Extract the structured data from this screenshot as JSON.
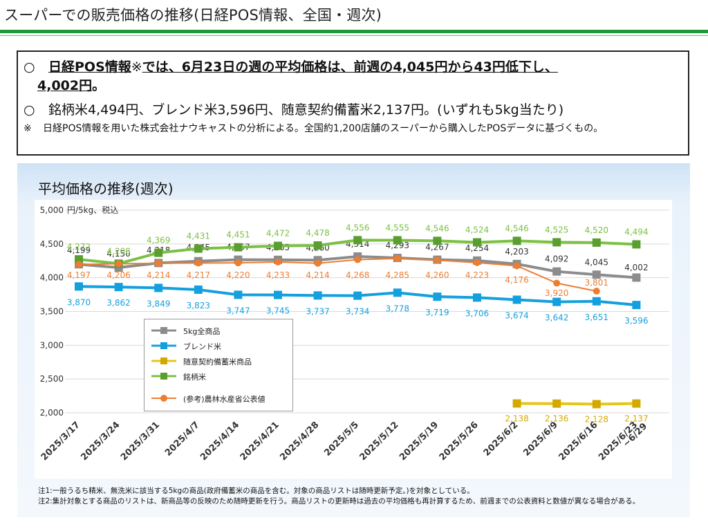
{
  "page": {
    "title": "スーパーでの販売価格の推移(日経POS情報、全国・週次)"
  },
  "summary": {
    "bullet1_symbol": "○",
    "bullet1_link": "日経POS情報",
    "bullet1_note_mark": "※",
    "bullet1_text": "では、6月23日の週の平均価格は、前週の4,045円から43円低下し、",
    "bullet1_tail_value": "4,002円",
    "bullet1_tail_end": "。",
    "bullet2_symbol": "○",
    "bullet2_text": "銘柄米4,494円、ブレンド米3,596円、随意契約備蓄米2,137円。(いずれも5kg当たり)",
    "note_symbol": "※",
    "note_text": "日経POS情報を用いた株式会社ナウキャストの分析による。全国約1,200店舗のスーパーから購入したPOSデータに基づくもの。"
  },
  "chart_title": "平均価格の推移(週次)",
  "footnotes": [
    "注1:一般うるち精米、無洗米に該当する5kgの商品(政府備蓄米の商品を含む。対象の商品リストは随時更新予定。)を対象としている。",
    "注2:集計対象とする商品のリストは、新商品等の反映のため随時更新を行う。商品リストの更新時は過去の平均価格も再計算するため、前週までの公表資料と数値が異なる場合がある。"
  ],
  "chart_data": {
    "type": "line",
    "ylabel": "円/5kg、税込",
    "ylim": [
      2000,
      5000
    ],
    "y_ticks": [
      "2,000",
      "2,500",
      "3,000",
      "3,500",
      "4,000",
      "4,500",
      "5,000"
    ],
    "y_tick_values": [
      2000,
      2500,
      3000,
      3500,
      4000,
      4500,
      5000
    ],
    "categories": [
      "2025/3/17",
      "2025/3/24",
      "2025/3/31",
      "2025/4/7",
      "2025/4/14",
      "2025/4/21",
      "2025/4/28",
      "2025/5/5",
      "2025/5/12",
      "2025/5/19",
      "2025/5/26",
      "2025/6/2",
      "2025/6/9",
      "2025/6/16",
      "2025/6/23\n~6/29"
    ],
    "grid": "horizontal",
    "series": [
      {
        "name": "5kg全商品",
        "color": "#8c8c8c",
        "marker": "square",
        "dashed": false,
        "values": [
          4199,
          4150,
          4218,
          4245,
          4267,
          4265,
          4260,
          4314,
          4293,
          4267,
          4254,
          4203,
          4092,
          4045,
          4002
        ],
        "labels": [
          "4,199",
          "4,150",
          "4,218",
          "4,245",
          "4,267",
          "4,265",
          "4,260",
          "4,314",
          "4,293",
          "4,267",
          "4,254",
          "4,203",
          "4,092",
          "4,045",
          "4,002"
        ]
      },
      {
        "name": "ブレンド米",
        "color": "#14a0de",
        "marker": "square",
        "dashed": false,
        "values": [
          3870,
          3862,
          3849,
          3823,
          3747,
          3745,
          3737,
          3734,
          3778,
          3719,
          3706,
          3674,
          3642,
          3651,
          3596
        ],
        "labels": [
          "3,870",
          "3,862",
          "3,849",
          "3,823",
          "3,747",
          "3,745",
          "3,737",
          "3,734",
          "3,778",
          "3,719",
          "3,706",
          "3,674",
          "3,642",
          "3,651",
          "3,596"
        ]
      },
      {
        "name": "随意契約備蓄米商品",
        "color": "#e6c619",
        "label_color": "#d9a800",
        "marker": "square",
        "dashed": false,
        "values": [
          null,
          null,
          null,
          null,
          null,
          null,
          null,
          null,
          null,
          null,
          null,
          2138,
          2136,
          2128,
          2137
        ],
        "labels": [
          "",
          "",
          "",
          "",
          "",
          "",
          "",
          "",
          "",
          "",
          "",
          "2,138",
          "2,136",
          "2,128",
          "2,137"
        ]
      },
      {
        "name": "銘柄米",
        "color": "#7ac143",
        "marker": "square",
        "dashed": false,
        "values": [
          4272,
          4208,
          4369,
          4431,
          4451,
          4472,
          4478,
          4556,
          4555,
          4546,
          4524,
          4546,
          4525,
          4520,
          4494
        ],
        "labels": [
          "4,272",
          "4,208",
          "4,369",
          "4,431",
          "4,451",
          "4,472",
          "4,478",
          "4,556",
          "4,555",
          "4,546",
          "4,524",
          "4,546",
          "4,525",
          "4,520",
          "4,494"
        ]
      },
      {
        "name": "(参考)農林水産省公表値",
        "color": "#ed7d31",
        "marker": "circle",
        "dashed": false,
        "values": [
          4197,
          4206,
          4214,
          4217,
          4220,
          4233,
          4214,
          4268,
          4285,
          4260,
          4223,
          4176,
          3920,
          3801,
          null
        ],
        "labels": [
          "4,197",
          "4,206",
          "4,214",
          "4,217",
          "4,220",
          "4,233",
          "4,214",
          "4,268",
          "4,285",
          "4,260",
          "4,223",
          "4,176",
          "3,920",
          "3,801",
          ""
        ]
      }
    ],
    "legend": "lower-left inside plot"
  }
}
